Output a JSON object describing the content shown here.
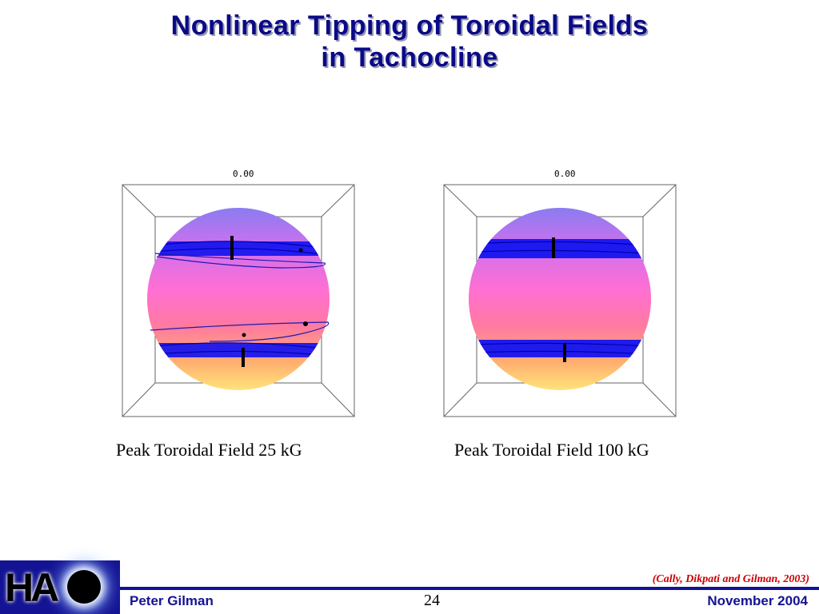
{
  "slide": {
    "title_line1": "Nonlinear Tipping of Toroidal Fields",
    "title_line2": "in Tachocline",
    "page_number": "24",
    "citation": "(Cally, Dikpati and Gilman, 2003)"
  },
  "panels": [
    {
      "frame_label": "0.00",
      "caption": "Peak Toroidal Field 25 kG",
      "state": "tipped"
    },
    {
      "frame_label": "0.00",
      "caption": "Peak Toroidal Field 100 kG",
      "state": "flat"
    }
  ],
  "footer": {
    "author": "Peter Gilman",
    "date": "November 2004",
    "logo_text": "HA"
  },
  "colors": {
    "title": "#0a0a88",
    "band": "#0000ff",
    "footer_bar": "#131394",
    "citation": "#cc0000"
  }
}
